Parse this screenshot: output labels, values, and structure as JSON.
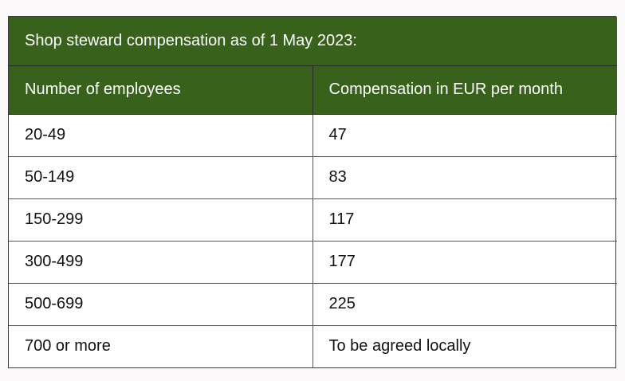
{
  "table": {
    "title": "Shop steward compensation as of 1 May 2023:",
    "columns": [
      "Number of employees",
      "Compensation in EUR per month"
    ],
    "rows": [
      {
        "employees": "20-49",
        "compensation": "47"
      },
      {
        "employees": "50-149",
        "compensation": "83"
      },
      {
        "employees": "150-299",
        "compensation": "117"
      },
      {
        "employees": "300-499",
        "compensation": "177"
      },
      {
        "employees": "500-699",
        "compensation": "225"
      },
      {
        "employees": "700 or more",
        "compensation": "To be agreed locally"
      }
    ]
  },
  "colors": {
    "header_background": "#38621c",
    "header_text": "#ffffff",
    "body_background": "#ffffff",
    "page_background": "#fbf9f9"
  }
}
